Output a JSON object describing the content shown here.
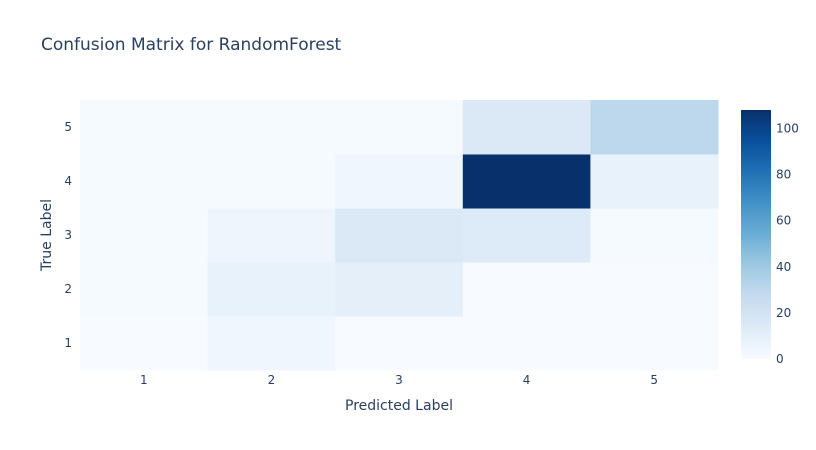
{
  "chart_data": {
    "type": "heatmap",
    "title": "Confusion Matrix for RandomForest",
    "xlabel": "Predicted Label",
    "ylabel": "True Label",
    "x": [
      "1",
      "2",
      "3",
      "4",
      "5"
    ],
    "y": [
      "1",
      "2",
      "3",
      "4",
      "5"
    ],
    "z": [
      [
        0,
        4,
        0,
        0,
        0
      ],
      [
        1,
        8,
        10,
        0,
        0
      ],
      [
        1,
        5,
        15,
        14,
        1
      ],
      [
        1,
        1,
        4,
        108,
        8
      ],
      [
        1,
        1,
        1,
        15,
        30
      ]
    ],
    "colorscale": "Blues",
    "zmin": 0,
    "zmax": 108,
    "colorbar_ticks": [
      "0",
      "20",
      "40",
      "60",
      "80",
      "100"
    ],
    "colorbar_tick_values": [
      0,
      20,
      40,
      60,
      80,
      100
    ],
    "grid": false
  }
}
